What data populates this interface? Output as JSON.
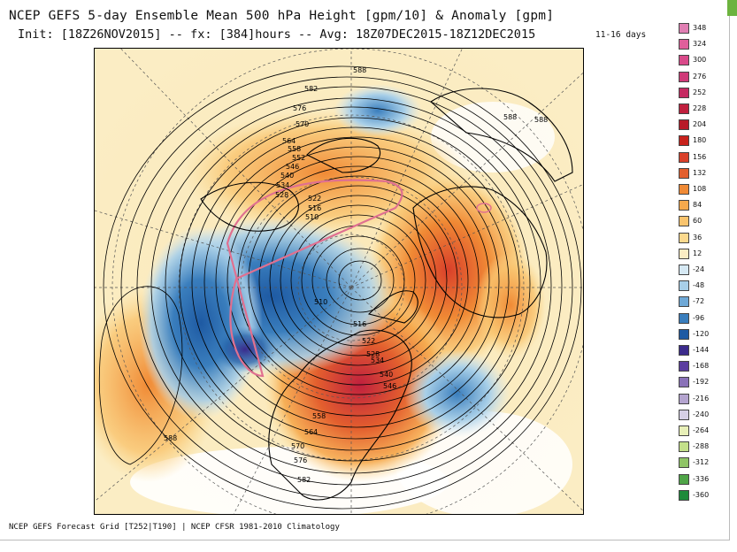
{
  "header": {
    "title": "NCEP GEFS 5-day Ensemble Mean 500 hPa Height [gpm/10] & Anomaly [gpm]",
    "subtitle": "Init: [18Z26NOV2015] -- fx: [384]hours -- Avg: 18Z07DEC2015-18Z12DEC2015",
    "range_label": "11-16 days"
  },
  "footer": {
    "text": "NCEP GEFS Forecast Grid [T252|T190] | NCEP CFSR 1981-2010 Climatology"
  },
  "colorbar": {
    "labels": [
      "348",
      "324",
      "300",
      "276",
      "252",
      "228",
      "204",
      "180",
      "156",
      "132",
      "108",
      "84",
      "60",
      "36",
      "12",
      "-24",
      "-48",
      "-72",
      "-96",
      "-120",
      "-144",
      "-168",
      "-192",
      "-216",
      "-240",
      "-264",
      "-288",
      "-312",
      "-336",
      "-360"
    ],
    "colors": [
      "#e07fb3",
      "#e05f9b",
      "#d94a8a",
      "#cf3a78",
      "#c52a62",
      "#c0203e",
      "#b81a28",
      "#c8221c",
      "#d9402a",
      "#e35f2e",
      "#f08a35",
      "#f6a94c",
      "#f9c46e",
      "#fbd98e",
      "#fbedc4",
      "#d6e9f4",
      "#a8cfe8",
      "#6ea8d6",
      "#3a7ebd",
      "#1e5aa3",
      "#3b2b8c",
      "#5b3ca0",
      "#8a72b8",
      "#b4a4cf",
      "#d6cfe6",
      "#e8f0b8",
      "#c4e08a",
      "#8fc466",
      "#4fa548",
      "#1e8a3a"
    ]
  },
  "map": {
    "contour_labels": [
      "588",
      "582",
      "576",
      "570",
      "564",
      "558",
      "552",
      "546",
      "540",
      "534",
      "528",
      "522",
      "516",
      "510",
      "588",
      "588",
      "510",
      "516",
      "522",
      "528",
      "534",
      "540",
      "546",
      "558",
      "564",
      "570",
      "576",
      "582",
      "588"
    ],
    "projection": "north-polar-stereographic"
  },
  "colors": {
    "positive_anomaly": "#d9402a",
    "negative_anomaly": "#3a7ebd",
    "contour": "#000000",
    "highlight_contour": "#e07090"
  }
}
